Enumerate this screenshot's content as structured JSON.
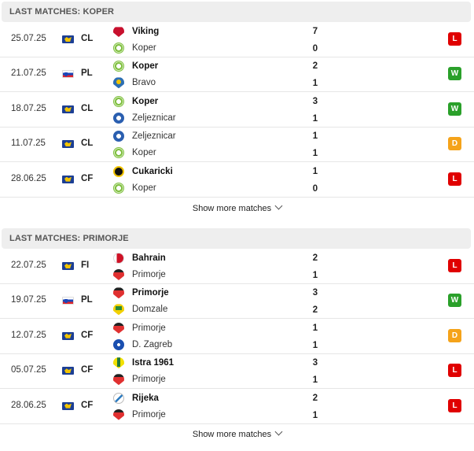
{
  "sections": [
    {
      "title": "LAST MATCHES: KOPER",
      "show_more": "Show more matches",
      "matches": [
        {
          "date": "25.07.25",
          "flag": "eu-flag-icon",
          "comp": "CL",
          "home": "Viking",
          "home_logo": "viking-logo",
          "home_bold": true,
          "away": "Koper",
          "away_logo": "koper-logo",
          "away_bold": false,
          "home_score": "7",
          "away_score": "0",
          "result": "L"
        },
        {
          "date": "21.07.25",
          "flag": "slovenia-flag-icon",
          "comp": "PL",
          "home": "Koper",
          "home_logo": "koper-logo",
          "home_bold": true,
          "away": "Bravo",
          "away_logo": "bravo-logo",
          "away_bold": false,
          "home_score": "2",
          "away_score": "1",
          "result": "W"
        },
        {
          "date": "18.07.25",
          "flag": "eu-flag-icon",
          "comp": "CL",
          "home": "Koper",
          "home_logo": "koper-logo",
          "home_bold": true,
          "away": "Zeljeznicar",
          "away_logo": "zeljeznicar-logo",
          "away_bold": false,
          "home_score": "3",
          "away_score": "1",
          "result": "W"
        },
        {
          "date": "11.07.25",
          "flag": "eu-flag-icon",
          "comp": "CL",
          "home": "Zeljeznicar",
          "home_logo": "zeljeznicar-logo",
          "home_bold": false,
          "away": "Koper",
          "away_logo": "koper-logo",
          "away_bold": false,
          "home_score": "1",
          "away_score": "1",
          "result": "D"
        },
        {
          "date": "28.06.25",
          "flag": "eu-flag-icon",
          "comp": "CF",
          "home": "Cukaricki",
          "home_logo": "cukaricki-logo",
          "home_bold": true,
          "away": "Koper",
          "away_logo": "koper-logo",
          "away_bold": false,
          "home_score": "1",
          "away_score": "0",
          "result": "L"
        }
      ]
    },
    {
      "title": "LAST MATCHES: PRIMORJE",
      "show_more": "Show more matches",
      "matches": [
        {
          "date": "22.07.25",
          "flag": "eu-flag-icon",
          "comp": "FI",
          "home": "Bahrain",
          "home_logo": "bahrain-logo",
          "home_bold": true,
          "away": "Primorje",
          "away_logo": "primorje-logo",
          "away_bold": false,
          "home_score": "2",
          "away_score": "1",
          "result": "L"
        },
        {
          "date": "19.07.25",
          "flag": "slovenia-flag-icon",
          "comp": "PL",
          "home": "Primorje",
          "home_logo": "primorje-logo",
          "home_bold": true,
          "away": "Domzale",
          "away_logo": "domzale-logo",
          "away_bold": false,
          "home_score": "3",
          "away_score": "2",
          "result": "W"
        },
        {
          "date": "12.07.25",
          "flag": "eu-flag-icon",
          "comp": "CF",
          "home": "Primorje",
          "home_logo": "primorje-logo",
          "home_bold": false,
          "away": "D. Zagreb",
          "away_logo": "dinamo-zagreb-logo",
          "away_bold": false,
          "home_score": "1",
          "away_score": "1",
          "result": "D"
        },
        {
          "date": "05.07.25",
          "flag": "eu-flag-icon",
          "comp": "CF",
          "home": "Istra 1961",
          "home_logo": "istra-logo",
          "home_bold": true,
          "away": "Primorje",
          "away_logo": "primorje-logo",
          "away_bold": false,
          "home_score": "3",
          "away_score": "1",
          "result": "L"
        },
        {
          "date": "28.06.25",
          "flag": "eu-flag-icon",
          "comp": "CF",
          "home": "Rijeka",
          "home_logo": "rijeka-logo",
          "home_bold": true,
          "away": "Primorje",
          "away_logo": "primorje-logo",
          "away_bold": false,
          "home_score": "2",
          "away_score": "1",
          "result": "L"
        }
      ]
    }
  ],
  "colors": {
    "loss": "#e00000",
    "win": "#2aa02a",
    "draw": "#f5a31a"
  }
}
